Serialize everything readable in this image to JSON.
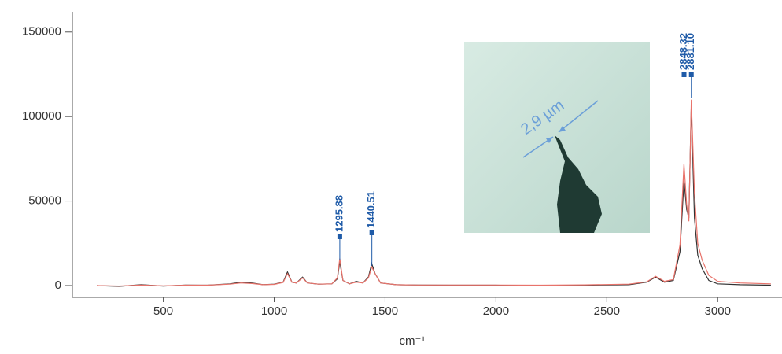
{
  "chart_data": {
    "type": "line",
    "xlabel": "cm⁻¹",
    "x": [
      200,
      300,
      400,
      500,
      600,
      700,
      800,
      850,
      900,
      950,
      1000,
      1040,
      1060,
      1080,
      1100,
      1128,
      1150,
      1200,
      1260,
      1285,
      1296,
      1310,
      1340,
      1370,
      1400,
      1425,
      1440,
      1455,
      1480,
      1550,
      1650,
      1800,
      2000,
      2200,
      2400,
      2600,
      2680,
      2720,
      2760,
      2800,
      2830,
      2848,
      2860,
      2870,
      2881,
      2895,
      2910,
      2930,
      2960,
      3000,
      3100,
      3240
    ],
    "series": [
      {
        "color": "#333333",
        "values": [
          0,
          -500,
          500,
          -300,
          300,
          200,
          1000,
          2000,
          1500,
          500,
          800,
          2000,
          8000,
          2000,
          1500,
          5000,
          1500,
          800,
          1000,
          4000,
          14000,
          3000,
          1000,
          2500,
          1500,
          5000,
          13000,
          7000,
          1500,
          500,
          300,
          200,
          200,
          0,
          200,
          500,
          2000,
          5000,
          2000,
          3000,
          20000,
          62000,
          45000,
          40000,
          107000,
          40000,
          18000,
          10000,
          3000,
          1000,
          500,
          200
        ]
      },
      {
        "color": "#e8736b",
        "values": [
          0,
          -300,
          300,
          -200,
          200,
          200,
          800,
          1500,
          1200,
          500,
          700,
          1800,
          7000,
          2000,
          1500,
          4500,
          1500,
          800,
          1000,
          4500,
          16000,
          3000,
          1000,
          2000,
          1500,
          4500,
          11000,
          7000,
          1500,
          500,
          300,
          300,
          300,
          200,
          400,
          800,
          2200,
          5500,
          2500,
          3500,
          24000,
          72000,
          48000,
          38000,
          110000,
          55000,
          25000,
          15000,
          6000,
          2500,
          1500,
          1000
        ]
      }
    ],
    "xlim": [
      90,
      3290
    ],
    "ylim": [
      -7000,
      162000
    ],
    "xticks": [
      500,
      1000,
      1500,
      2000,
      2500,
      3000
    ],
    "yticks": [
      0,
      50000,
      100000,
      150000
    ],
    "peak_labels": [
      1295.88,
      1440.51,
      2848.32,
      {
        "value": 2881.1,
        "label": "2881.10"
      }
    ],
    "inset_annotation": "2,9 µm"
  }
}
